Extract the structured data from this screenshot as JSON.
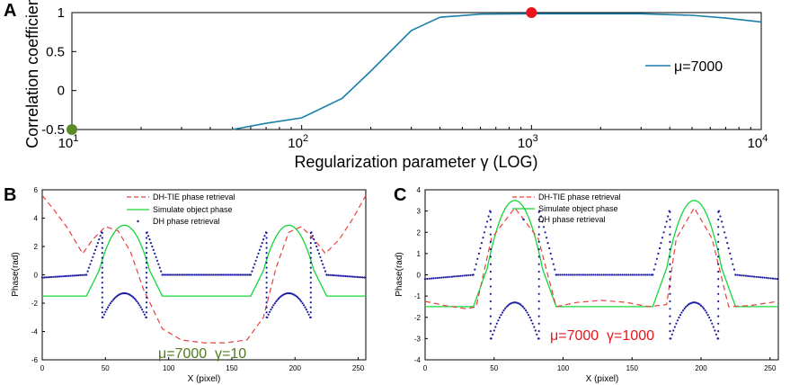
{
  "chart_data": [
    {
      "panel": "A",
      "type": "line",
      "xscale": "log",
      "xlabel": "Regularization parameter γ (LOG)",
      "ylabel": "Correlation coefficient",
      "xlim": [
        10,
        10000
      ],
      "ylim": [
        -0.5,
        1
      ],
      "xticks": [
        {
          "v": 10,
          "b": "10",
          "e": "1"
        },
        {
          "v": 100,
          "b": "10",
          "e": "2"
        },
        {
          "v": 1000,
          "b": "10",
          "e": "3"
        },
        {
          "v": 10000,
          "b": "10",
          "e": "4"
        }
      ],
      "yticks": [
        -0.5,
        0,
        0.5,
        1
      ],
      "ytick_labels": [
        "-0.5",
        "0",
        "0.5",
        "1"
      ],
      "legend": "μ=7000",
      "legend_position": "right",
      "series": [
        {
          "name": "μ=7000",
          "color": "#1a7fa8",
          "x": [
            50,
            70,
            100,
            150,
            200,
            300,
            400,
            600,
            1000,
            2000,
            3000,
            5000,
            7000,
            10000
          ],
          "y": [
            -0.5,
            -0.42,
            -0.35,
            -0.1,
            0.25,
            0.77,
            0.94,
            0.98,
            0.985,
            0.985,
            0.985,
            0.965,
            0.93,
            0.88
          ]
        }
      ],
      "markers": [
        {
          "x": 10,
          "y": -0.5,
          "color": "#5a8a2a"
        },
        {
          "x": 1000,
          "y": 1,
          "color": "#e8161c"
        }
      ]
    },
    {
      "panel": "B",
      "type": "line",
      "xlabel": "X (pixel)",
      "ylabel": "Phase(rad)",
      "xlim": [
        0,
        256
      ],
      "ylim": [
        -6,
        6
      ],
      "xticks": [
        0,
        50,
        100,
        150,
        200,
        250
      ],
      "yticks": [
        -6,
        -4,
        -2,
        0,
        2,
        4,
        6
      ],
      "legend": [
        "DH-TIE phase retrieval",
        "Simulate object phase",
        "DH phase retrieval"
      ],
      "annotation": "μ=7000  γ=10",
      "annotation_color": "#4f7a1c",
      "dh_tie": {
        "x": [
          0,
          10,
          20,
          32,
          40,
          50,
          60,
          70,
          80,
          95,
          110,
          128,
          145,
          162,
          175,
          185,
          195,
          205,
          216,
          224,
          235,
          246,
          256
        ],
        "y": [
          5.6,
          4.5,
          3.3,
          1.5,
          2.5,
          3.4,
          3.1,
          1.6,
          -1.0,
          -3.8,
          -4.6,
          -4.8,
          -4.8,
          -4.6,
          -3.0,
          0.5,
          3.0,
          3.4,
          2.4,
          1.5,
          2.5,
          4.0,
          5.6
        ]
      },
      "dh_flat": [
        -0.2,
        0.0,
        -0.2
      ],
      "dh_arch": [
        -3.0,
        -1.3
      ],
      "dh_edge": [
        -3.0,
        3.0
      ]
    },
    {
      "panel": "C",
      "type": "line",
      "xlabel": "X (pixel)",
      "ylabel": "Phase(rad)",
      "xlim": [
        0,
        256
      ],
      "ylim": [
        -4,
        4
      ],
      "xticks": [
        0,
        50,
        100,
        150,
        200,
        250
      ],
      "yticks": [
        -4,
        -3,
        -2,
        -1,
        0,
        1,
        2,
        3,
        4
      ],
      "legend": [
        "DH-TIE phase retrieval",
        "Simulate object phase",
        "DH phase retrieval"
      ],
      "annotation": "μ=7000  γ=1000",
      "annotation_color": "#e8161c",
      "dh_tie": {
        "x": [
          0,
          15,
          30,
          37,
          48,
          65,
          82,
          95,
          110,
          128,
          146,
          162,
          175,
          182,
          195,
          208,
          220,
          235,
          256
        ],
        "y": [
          -1.25,
          -1.45,
          -1.6,
          -1.5,
          1.7,
          3.15,
          1.7,
          -1.5,
          -1.3,
          -1.2,
          -1.3,
          -1.5,
          -1.4,
          1.7,
          3.15,
          1.7,
          -1.5,
          -1.45,
          -1.25
        ]
      },
      "dh_flat": [
        -0.2,
        0.0,
        -0.2
      ],
      "dh_arch": [
        -3.0,
        -1.3
      ],
      "dh_edge": [
        -3.0,
        3.0
      ]
    }
  ],
  "object_phase": {
    "base": -1.5,
    "peak": 3.5,
    "arches": [
      {
        "start": 35,
        "rise_end": 45,
        "center": 65,
        "fall_start": 85,
        "end": 95
      },
      {
        "start": 165,
        "rise_end": 175,
        "center": 195,
        "fall_start": 215,
        "end": 225
      }
    ]
  },
  "colors": {
    "dh_tie": "#e8413f",
    "object": "#14d838",
    "dh": "#1c1ca0"
  }
}
